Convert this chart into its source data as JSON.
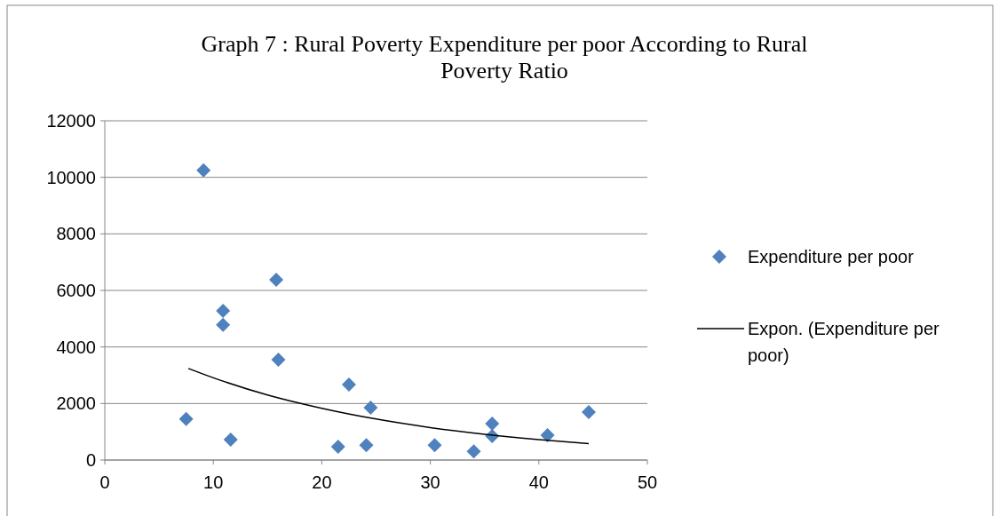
{
  "chart_data": {
    "type": "scatter",
    "title": "Graph 7 : Rural Poverty Expenditure per poor According to Rural Poverty Ratio",
    "xlim": [
      0,
      50
    ],
    "xticks": [
      0,
      10,
      20,
      30,
      40,
      50
    ],
    "ylim": [
      0,
      12000
    ],
    "yticks": [
      0,
      2000,
      4000,
      6000,
      8000,
      10000,
      12000
    ],
    "grid": "y",
    "legend": "right",
    "series": [
      {
        "name": "Expenditure per poor",
        "marker": "diamond",
        "color": "#4f81bd",
        "x": [
          9.1,
          15.8,
          10.9,
          10.9,
          16.0,
          7.5,
          11.6,
          22.5,
          24.5,
          21.5,
          24.1,
          30.4,
          34.0,
          35.7,
          35.7,
          40.8,
          44.6
        ],
        "values": [
          10250,
          6380,
          5280,
          4780,
          3550,
          1450,
          720,
          2670,
          1850,
          470,
          530,
          530,
          310,
          1290,
          850,
          880,
          1700
        ]
      },
      {
        "name": "Expon. (Expenditure per poor)",
        "type": "line",
        "marker": "none",
        "color": "#000000",
        "x": [
          7.7,
          10,
          15,
          20,
          25,
          30,
          35,
          40,
          44.6
        ],
        "values": [
          3240,
          2910,
          2300,
          1830,
          1450,
          1150,
          910,
          720,
          580
        ]
      }
    ]
  }
}
